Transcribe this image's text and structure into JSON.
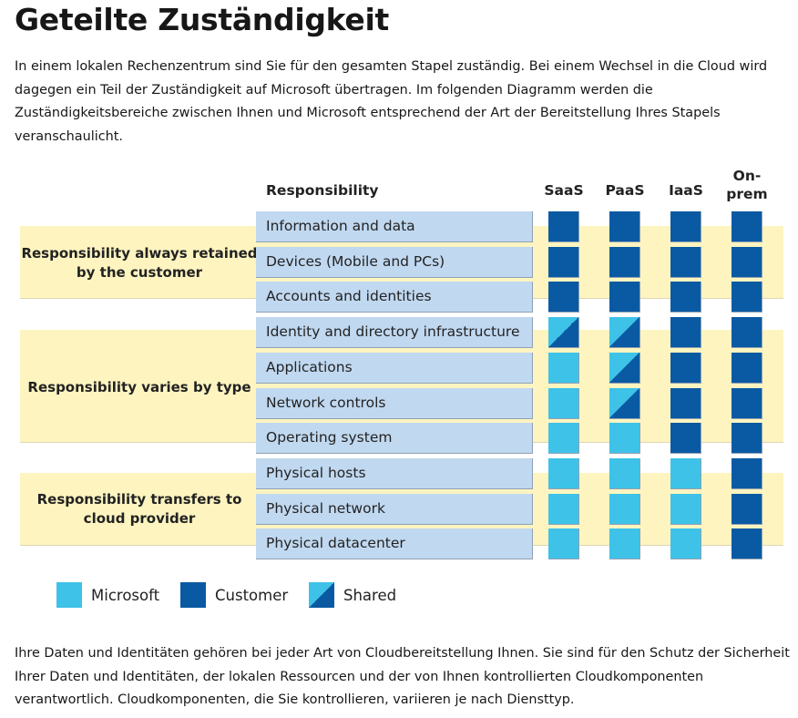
{
  "title": "Geteilte Zuständigkeit",
  "intro": "In einem lokalen Rechenzentrum sind Sie für den gesamten Stapel zuständig. Bei einem Wechsel in die Cloud wird dagegen ein Teil der Zuständigkeit auf Microsoft übertragen. Im folgenden Diagramm werden die Zuständigkeitsbereiche zwischen Ihnen und Microsoft entsprechend der Art der Bereitstellung Ihres Stapels veranschaulicht.",
  "outro": "Ihre Daten und Identitäten gehören bei jeder Art von Cloudbereitstellung Ihnen. Sie sind für den Schutz der Sicherheit Ihrer Daten und Identitäten, der lokalen Ressourcen und der von Ihnen kontrollierten Cloudkomponenten verantwortlich. Cloudkomponenten, die Sie kontrollieren, variieren je nach Diensttyp.",
  "diagram": {
    "responsibility_header": "Responsibility",
    "columns": [
      "SaaS",
      "PaaS",
      "IaaS",
      "On-prem"
    ],
    "groups": [
      {
        "label": "Responsibility always retained by the customer"
      },
      {
        "label": "Responsibility varies by type"
      },
      {
        "label": "Responsibility transfers to cloud provider"
      }
    ],
    "rows": [
      {
        "label": "Information and data",
        "cells": [
          "customer",
          "customer",
          "customer",
          "customer"
        ]
      },
      {
        "label": "Devices (Mobile and PCs)",
        "cells": [
          "customer",
          "customer",
          "customer",
          "customer"
        ]
      },
      {
        "label": "Accounts and identities",
        "cells": [
          "customer",
          "customer",
          "customer",
          "customer"
        ]
      },
      {
        "label": "Identity and directory infrastructure",
        "cells": [
          "shared",
          "shared",
          "customer",
          "customer"
        ]
      },
      {
        "label": "Applications",
        "cells": [
          "microsoft",
          "shared",
          "customer",
          "customer"
        ]
      },
      {
        "label": "Network controls",
        "cells": [
          "microsoft",
          "shared",
          "customer",
          "customer"
        ]
      },
      {
        "label": "Operating system",
        "cells": [
          "microsoft",
          "microsoft",
          "customer",
          "customer"
        ]
      },
      {
        "label": "Physical hosts",
        "cells": [
          "microsoft",
          "microsoft",
          "microsoft",
          "customer"
        ]
      },
      {
        "label": "Physical network",
        "cells": [
          "microsoft",
          "microsoft",
          "microsoft",
          "customer"
        ]
      },
      {
        "label": "Physical datacenter",
        "cells": [
          "microsoft",
          "microsoft",
          "microsoft",
          "customer"
        ]
      }
    ],
    "legend": [
      {
        "key": "microsoft",
        "label": "Microsoft"
      },
      {
        "key": "customer",
        "label": "Customer"
      },
      {
        "key": "shared",
        "label": "Shared"
      }
    ],
    "colors": {
      "microsoft": "#3ec2e8",
      "customer": "#0a5aa3",
      "band": "#fdf4c0",
      "row": "#c0d8f0"
    }
  }
}
